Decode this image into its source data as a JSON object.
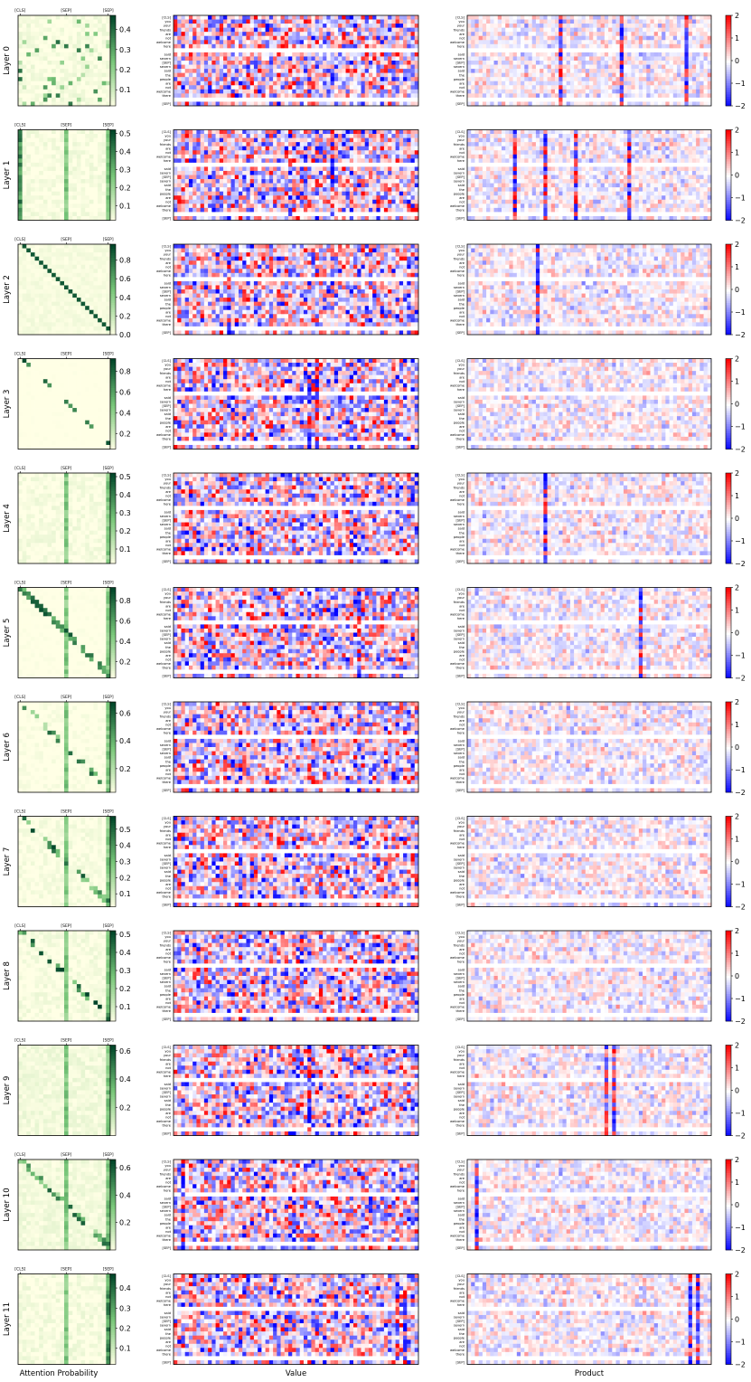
{
  "figure": {
    "x_labels": {
      "attention": "Attention Probability",
      "value": "Value",
      "product": "Product"
    }
  },
  "tokens": [
    "[CLS]",
    "you",
    "your",
    "friends",
    "are",
    "not",
    "welcome",
    "here",
    "",
    "said",
    "severn",
    "[SEP]",
    "severn",
    "said",
    "the",
    "people",
    "are",
    "not",
    "welcome",
    "there",
    "",
    "[SEP]"
  ],
  "attention_tick_labels": [
    "[CLS]",
    "[SEP]",
    "[SEP]"
  ],
  "attention_tick_positions": [
    0,
    11,
    21
  ],
  "colors": {
    "attention_low": "#ffffe5",
    "attention_mid": "#78c679",
    "attention_high": "#004529",
    "diverge_low": "#0000ff",
    "diverge_mid": "#ffffff",
    "diverge_high": "#ff0000"
  },
  "chart_data": {
    "type": "heatmap",
    "panels": [
      "attention",
      "value",
      "product"
    ],
    "value_dims": 64,
    "seq_len": 22,
    "product_colorbar": {
      "range": [
        -2,
        2
      ],
      "ticks": [
        -2,
        -1,
        0,
        1,
        2
      ]
    },
    "layers": [
      {
        "label": "Layer 0",
        "attn_ticks": [
          0.1,
          0.2,
          0.3,
          0.4
        ],
        "attn_range": [
          0.02,
          0.47
        ],
        "pattern": "scattered",
        "sep_col": false,
        "value_vcols": [],
        "prod_vcols": [
          24,
          40,
          57
        ]
      },
      {
        "label": "Layer 1",
        "attn_ticks": [
          0.1,
          0.2,
          0.3,
          0.4,
          0.5
        ],
        "attn_range": [
          0.02,
          0.52
        ],
        "pattern": "cls",
        "sep_col": true,
        "value_vcols": [
          30,
          41
        ],
        "prod_vcols": [
          12,
          20,
          28,
          42
        ]
      },
      {
        "label": "Layer 2",
        "attn_ticks": [
          0.0,
          0.2,
          0.4,
          0.6,
          0.8
        ],
        "attn_range": [
          0.0,
          0.97
        ],
        "pattern": "offdiag",
        "sep_col": false,
        "value_vcols": [
          14
        ],
        "prod_vcols": [
          18
        ]
      },
      {
        "label": "Layer 3",
        "attn_ticks": [
          0.2,
          0.4,
          0.6,
          0.8
        ],
        "attn_range": [
          0.05,
          0.92
        ],
        "pattern": "sparse",
        "sep_col": false,
        "value_vcols": [
          35,
          37
        ],
        "prod_vcols": []
      },
      {
        "label": "Layer 4",
        "attn_ticks": [
          0.1,
          0.2,
          0.3,
          0.4,
          0.5
        ],
        "attn_range": [
          0.02,
          0.52
        ],
        "pattern": "sep",
        "sep_col": true,
        "value_vcols": [],
        "prod_vcols": [
          20
        ]
      },
      {
        "label": "Layer 5",
        "attn_ticks": [
          0.2,
          0.4,
          0.6,
          0.8
        ],
        "attn_range": [
          0.04,
          0.93
        ],
        "pattern": "diag",
        "sep_col": true,
        "value_vcols": [
          48
        ],
        "prod_vcols": [
          45
        ]
      },
      {
        "label": "Layer 6",
        "attn_ticks": [
          0.2,
          0.4,
          0.6
        ],
        "attn_range": [
          0.03,
          0.68
        ],
        "pattern": "diagsep",
        "sep_col": true,
        "value_vcols": [],
        "prod_vcols": []
      },
      {
        "label": "Layer 7",
        "attn_ticks": [
          0.1,
          0.2,
          0.3,
          0.4,
          0.5
        ],
        "attn_range": [
          0.02,
          0.58
        ],
        "pattern": "diagsep",
        "sep_col": true,
        "value_vcols": [],
        "prod_vcols": []
      },
      {
        "label": "Layer 8",
        "attn_ticks": [
          0.1,
          0.2,
          0.3,
          0.4,
          0.5
        ],
        "attn_range": [
          0.02,
          0.52
        ],
        "pattern": "diagsep",
        "sep_col": true,
        "value_vcols": [],
        "prod_vcols": []
      },
      {
        "label": "Layer 9",
        "attn_ticks": [
          0.2,
          0.4,
          0.6
        ],
        "attn_range": [
          0.0,
          0.64
        ],
        "pattern": "sep",
        "sep_col": true,
        "value_vcols": [
          35
        ],
        "prod_vcols": [
          36,
          38
        ]
      },
      {
        "label": "Layer 10",
        "attn_ticks": [
          0.2,
          0.4,
          0.6
        ],
        "attn_range": [
          0.0,
          0.66
        ],
        "pattern": "diagsep",
        "sep_col": true,
        "value_vcols": [
          2
        ],
        "prod_vcols": [
          2
        ]
      },
      {
        "label": "Layer 11",
        "attn_ticks": [
          0.1,
          0.2,
          0.3,
          0.4
        ],
        "attn_range": [
          0.02,
          0.47
        ],
        "pattern": "lastcol",
        "sep_col": true,
        "value_vcols": [
          58,
          60
        ],
        "prod_vcols": [
          58,
          60
        ]
      }
    ]
  }
}
